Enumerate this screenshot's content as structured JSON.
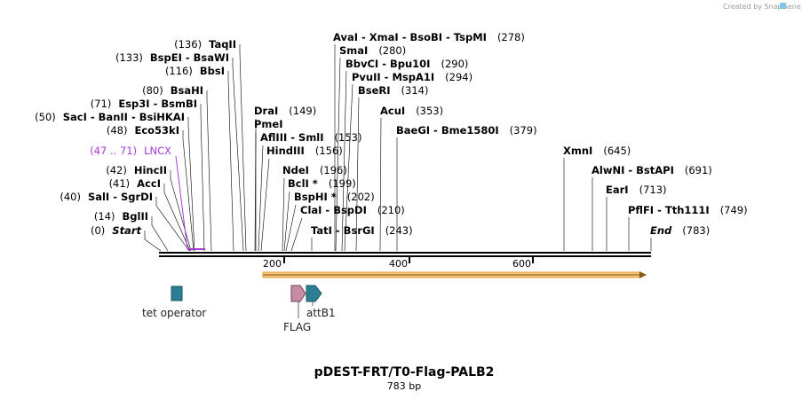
{
  "credit": "Created by SnapGene",
  "title": "pDEST-FRT/T0-Flag-PALB2",
  "subtitle": "783 bp",
  "ticks": [
    "200",
    "400",
    "600"
  ],
  "colors": {
    "lncx": "#a53ad6",
    "backbone": "#000000",
    "orf": "#e8a23a",
    "tet": "#2c7f93",
    "flag": "#c78ba6",
    "attb1": "#2c7f93"
  },
  "site_labels": [
    {
      "id": "taqii",
      "name": "TaqII",
      "pos": "(136)"
    },
    {
      "id": "bspei",
      "name": "BspEI  - BsaWI",
      "pos": "(133)"
    },
    {
      "id": "bbsi",
      "name": "BbsI",
      "pos": "(116)"
    },
    {
      "id": "bsahi",
      "name": "BsaHI",
      "pos": "(80)"
    },
    {
      "id": "esp3i",
      "name": "Esp3I  - BsmBI",
      "pos": "(71)"
    },
    {
      "id": "saci",
      "name": "SacI  - BanII  - BsiHKAI",
      "pos": "(50)"
    },
    {
      "id": "eco53ki",
      "name": "Eco53kI",
      "pos": "(48)"
    },
    {
      "id": "lncx",
      "name": "LNCX",
      "pos": "(47 .. 71)"
    },
    {
      "id": "hincii",
      "name": "HincII",
      "pos": "(42)"
    },
    {
      "id": "acci",
      "name": "AccI",
      "pos": "(41)"
    },
    {
      "id": "sali",
      "name": "SalI  - SgrDI",
      "pos": "(40)"
    },
    {
      "id": "bglii",
      "name": "BglII",
      "pos": "(14)"
    },
    {
      "id": "start",
      "name": "Start",
      "pos": "(0)"
    },
    {
      "id": "drai",
      "name": "DraI",
      "pos": "(149)"
    },
    {
      "id": "pmei",
      "name": "PmeI",
      "pos": ""
    },
    {
      "id": "aflii",
      "name": "AflIII  - SmlI",
      "pos": "(153)"
    },
    {
      "id": "hindiii",
      "name": "HindIII",
      "pos": "(156)"
    },
    {
      "id": "ndei",
      "name": "NdeI",
      "pos": "(196)"
    },
    {
      "id": "bcli",
      "name": "BclI *",
      "pos": "(199)"
    },
    {
      "id": "bsphi",
      "name": "BspHI *",
      "pos": "(202)"
    },
    {
      "id": "clai",
      "name": "ClaI  - BspDI",
      "pos": "(210)"
    },
    {
      "id": "tati",
      "name": "TatI  - BsrGI",
      "pos": "(243)"
    },
    {
      "id": "avai",
      "name": "AvaI  - XmaI  - BsoBI  - TspMI",
      "pos": "(278)"
    },
    {
      "id": "smai",
      "name": "SmaI",
      "pos": "(280)"
    },
    {
      "id": "bbvci",
      "name": "BbvCI  - Bpu10I",
      "pos": "(290)"
    },
    {
      "id": "pvuii",
      "name": "PvuII  - MspA1I",
      "pos": "(294)"
    },
    {
      "id": "bseri",
      "name": "BseRI",
      "pos": "(314)"
    },
    {
      "id": "acui",
      "name": "AcuI",
      "pos": "(353)"
    },
    {
      "id": "baegi",
      "name": "BaeGI  - Bme1580I",
      "pos": "(379)"
    },
    {
      "id": "xmni",
      "name": "XmnI",
      "pos": "(645)"
    },
    {
      "id": "alwni",
      "name": "AlwNI  - BstAPI",
      "pos": "(691)"
    },
    {
      "id": "eari",
      "name": "EarI",
      "pos": "(713)"
    },
    {
      "id": "pflfi",
      "name": "PflFI  - Tth111I",
      "pos": "(749)"
    },
    {
      "id": "end",
      "name": "End",
      "pos": "(783)"
    }
  ],
  "features": {
    "tet_operator": "tet operator",
    "flag": "FLAG",
    "attb1": "attB1"
  }
}
